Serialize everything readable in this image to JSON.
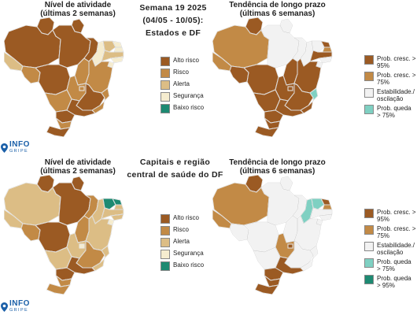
{
  "colors": {
    "alto_risco": "#9b5a23",
    "risco": "#c28a46",
    "alerta": "#dcbd85",
    "seguranca": "#f5eccf",
    "baixo_risco": "#1d8a72",
    "prob_cresc_95": "#9b5a23",
    "prob_cresc_75": "#c28a46",
    "estabilidade": "#f2f2f2",
    "prob_queda_75": "#7fd0c2",
    "prob_queda_95": "#1d8a72",
    "border": "#ffffff",
    "logo_blue": "#1a5fa8"
  },
  "header": {
    "line1": "Semana 19 2025",
    "line2": "(04/05 - 10/05):",
    "line3": "Estados e DF"
  },
  "middle_title": {
    "line1": "Capitais e região",
    "line2": "central de saúde do DF"
  },
  "top_left_title": {
    "line1": "Nível de atividade",
    "line2": "(últimas 2 semanas)"
  },
  "top_right_title": {
    "line1": "Tendência de longo prazo",
    "line2": "(últimas 6 semanas)"
  },
  "bottom_left_title": {
    "line1": "Nível de atividade",
    "line2": "(últimas 2 semanas)"
  },
  "bottom_right_title": {
    "line1": "Tendência de longo prazo",
    "line2": "(últimas 6 semanas)"
  },
  "activity_legend": [
    {
      "label": "Alto risco",
      "color_key": "alto_risco"
    },
    {
      "label": "Risco",
      "color_key": "risco"
    },
    {
      "label": "Alerta",
      "color_key": "alerta"
    },
    {
      "label": "Segurança",
      "color_key": "seguranca"
    },
    {
      "label": "Baixo risco",
      "color_key": "baixo_risco"
    }
  ],
  "trend_legend_top": [
    {
      "label": "Prob. cresc. > 95%",
      "color_key": "prob_cresc_95"
    },
    {
      "label": "Prob. cresc. > 75%",
      "color_key": "prob_cresc_75"
    },
    {
      "label": "Estabilidade./ oscilação",
      "color_key": "estabilidade"
    },
    {
      "label": "Prob. queda > 75%",
      "color_key": "prob_queda_75"
    }
  ],
  "trend_legend_bottom": [
    {
      "label": "Prob. cresc. > 95%",
      "color_key": "prob_cresc_95"
    },
    {
      "label": "Prob. cresc. > 75%",
      "color_key": "prob_cresc_75"
    },
    {
      "label": "Estabilidade./ oscilação",
      "color_key": "estabilidade"
    },
    {
      "label": "Prob. queda > 75%",
      "color_key": "prob_queda_75"
    },
    {
      "label": "Prob. queda > 95%",
      "color_key": "prob_queda_95"
    }
  ],
  "logo": {
    "main": "INFO",
    "sub": "GRIPE"
  },
  "maps": {
    "top_activity": {
      "AM": "alto_risco",
      "PA": "alto_risco",
      "MT": "alto_risco",
      "RR": "alto_risco",
      "AP": "alto_risco",
      "AC": "alerta",
      "RO": "risco",
      "TO": "risco",
      "MA": "alto_risco",
      "PI": "seguranca",
      "CE": "alerta",
      "RN": "seguranca",
      "PB": "seguranca",
      "PE": "alerta",
      "AL": "seguranca",
      "SE": "seguranca",
      "BA": "risco",
      "GO": "risco",
      "DF": "risco",
      "MS": "risco",
      "MG": "alto_risco",
      "ES": "risco",
      "RJ": "risco",
      "SP": "alto_risco",
      "PR": "alto_risco",
      "SC": "risco",
      "RS": "alto_risco"
    },
    "top_trend": {
      "AM": "prob_cresc_75",
      "PA": "estabilidade",
      "MT": "prob_cresc_95",
      "RR": "prob_cresc_95",
      "AP": "estabilidade",
      "AC": "prob_cresc_75",
      "RO": "prob_cresc_95",
      "TO": "prob_cresc_95",
      "MA": "estabilidade",
      "PI": "estabilidade",
      "CE": "estabilidade",
      "RN": "prob_cresc_95",
      "PB": "prob_cresc_75",
      "PE": "prob_cresc_95",
      "AL": "estabilidade",
      "SE": "estabilidade",
      "BA": "prob_cresc_95",
      "GO": "prob_cresc_95",
      "DF": "prob_cresc_95",
      "MS": "prob_cresc_95",
      "MG": "prob_cresc_95",
      "ES": "prob_queda_75",
      "RJ": "prob_cresc_95",
      "SP": "prob_cresc_95",
      "PR": "prob_cresc_95",
      "SC": "prob_cresc_95",
      "RS": "prob_cresc_95"
    },
    "bottom_activity": {
      "AM": "alerta",
      "PA": "alto_risco",
      "MT": "alto_risco",
      "RR": "alto_risco",
      "AP": "alto_risco",
      "AC": "alerta",
      "RO": "risco",
      "TO": "risco",
      "MA": "risco",
      "PI": "alerta",
      "CE": "baixo_risco",
      "RN": "baixo_risco",
      "PB": "alerta",
      "PE": "alerta",
      "AL": "alerta",
      "SE": "seguranca",
      "BA": "alerta",
      "GO": "alerta",
      "DF": "seguranca",
      "MS": "alerta",
      "MG": "risco",
      "ES": "alerta",
      "RJ": "alerta",
      "SP": "alto_risco",
      "PR": "alto_risco",
      "SC": "risco",
      "RS": "risco"
    },
    "bottom_trend": {
      "AM": "prob_cresc_75",
      "PA": "estabilidade",
      "MT": "estabilidade",
      "RR": "prob_cresc_95",
      "AP": "estabilidade",
      "AC": "prob_cresc_75",
      "RO": "estabilidade",
      "TO": "estabilidade",
      "MA": "estabilidade",
      "PI": "prob_queda_75",
      "CE": "prob_queda_75",
      "RN": "prob_cresc_95",
      "PB": "prob_cresc_75",
      "PE": "estabilidade",
      "AL": "estabilidade",
      "SE": "estabilidade",
      "BA": "estabilidade",
      "GO": "prob_cresc_75",
      "DF": "prob_cresc_95",
      "MS": "estabilidade",
      "MG": "estabilidade",
      "ES": "estabilidade",
      "RJ": "estabilidade",
      "SP": "prob_cresc_95",
      "PR": "prob_cresc_95",
      "SC": "prob_cresc_95",
      "RS": "prob_cresc_95"
    }
  }
}
